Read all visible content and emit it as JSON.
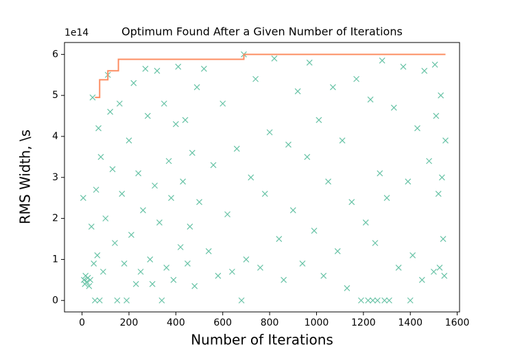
{
  "chart_data": {
    "type": "scatter",
    "title": "Optimum Found After a Given Number of Iterations",
    "x_label": "Number of Iterations",
    "y_label": "RMS Width, \\s",
    "y_offset_text": "1e14",
    "xlim": [
      -75,
      1610
    ],
    "ylim": [
      -0.28,
      6.29
    ],
    "xticks": [
      0,
      200,
      400,
      600,
      800,
      1000,
      1200,
      1400,
      1600
    ],
    "yticks": [
      0,
      1,
      2,
      3,
      4,
      5,
      6
    ],
    "grid": false,
    "series": [
      {
        "type": "scatter",
        "marker": "x",
        "color": "#66c2a5",
        "x": [
          5,
          8,
          12,
          15,
          20,
          25,
          30,
          35,
          40,
          45,
          50,
          55,
          60,
          65,
          70,
          75,
          80,
          90,
          100,
          110,
          120,
          130,
          140,
          150,
          160,
          170,
          180,
          190,
          200,
          210,
          220,
          230,
          240,
          250,
          260,
          270,
          280,
          290,
          300,
          310,
          320,
          330,
          340,
          350,
          360,
          370,
          380,
          390,
          400,
          410,
          420,
          430,
          440,
          450,
          460,
          470,
          480,
          490,
          500,
          520,
          540,
          560,
          580,
          600,
          620,
          640,
          660,
          680,
          690,
          700,
          720,
          740,
          760,
          780,
          800,
          820,
          840,
          860,
          880,
          900,
          920,
          940,
          960,
          970,
          990,
          1010,
          1030,
          1050,
          1070,
          1090,
          1110,
          1130,
          1150,
          1170,
          1190,
          1210,
          1220,
          1230,
          1240,
          1250,
          1260,
          1270,
          1280,
          1290,
          1300,
          1310,
          1330,
          1350,
          1370,
          1390,
          1400,
          1410,
          1430,
          1450,
          1460,
          1480,
          1500,
          1510,
          1520,
          1530,
          1540,
          1550,
          1545,
          1535,
          1525,
          1505
        ],
        "values": [
          2.5,
          0.5,
          0.4,
          0.6,
          0.45,
          0.55,
          0.35,
          0.5,
          1.8,
          4.95,
          0.9,
          0,
          2.7,
          1.1,
          4.2,
          0,
          3.5,
          0.7,
          2.0,
          5.5,
          4.6,
          3.2,
          1.4,
          0,
          4.8,
          2.6,
          0.9,
          0,
          3.9,
          1.6,
          5.3,
          0.4,
          3.1,
          0.7,
          2.2,
          5.65,
          4.5,
          1.0,
          0.4,
          2.8,
          5.6,
          1.9,
          0,
          4.8,
          0.8,
          3.4,
          2.5,
          0.5,
          4.3,
          5.7,
          1.3,
          2.9,
          4.4,
          0.9,
          1.8,
          3.6,
          0.35,
          5.2,
          2.4,
          5.65,
          1.2,
          3.3,
          0.6,
          4.8,
          2.1,
          0.7,
          3.7,
          0,
          6.0,
          1.0,
          3.0,
          5.4,
          0.8,
          2.6,
          4.1,
          5.9,
          1.5,
          0.5,
          3.8,
          2.2,
          5.1,
          0.9,
          3.5,
          5.8,
          1.7,
          4.4,
          0.6,
          2.9,
          5.2,
          1.2,
          3.9,
          0.3,
          2.4,
          5.4,
          0,
          1.9,
          0,
          4.9,
          0,
          1.4,
          0,
          3.1,
          5.85,
          0,
          2.5,
          0,
          4.7,
          0.8,
          5.7,
          2.9,
          0,
          1.1,
          4.2,
          0.5,
          5.6,
          3.4,
          0.7,
          4.5,
          2.6,
          5.0,
          1.5,
          3.9,
          0.6,
          3.0,
          0.8,
          5.75
        ]
      },
      {
        "type": "step",
        "color": "#fc8d62",
        "x": [
          55,
          75,
          75,
          110,
          110,
          155,
          155,
          690,
          690,
          1550
        ],
        "values": [
          4.95,
          4.95,
          5.38,
          5.38,
          5.6,
          5.6,
          5.88,
          5.88,
          6.0,
          6.0
        ]
      }
    ]
  }
}
